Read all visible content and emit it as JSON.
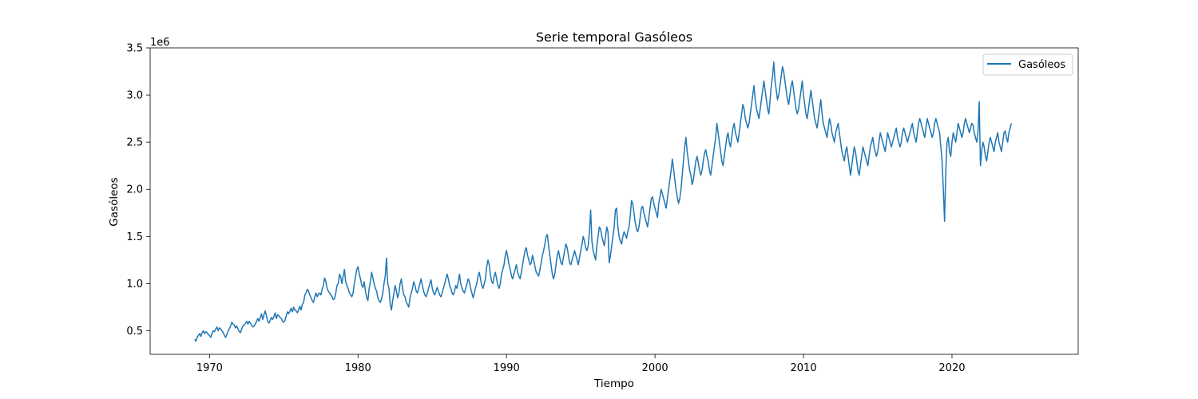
{
  "chart_data": {
    "type": "line",
    "title": "Serie temporal Gasóleos",
    "xlabel": "Tiempo",
    "ylabel": "Gasóleos",
    "y_offset_label": "1e6",
    "xlim": [
      1966.0,
      2028.5
    ],
    "ylim": [
      0.25,
      3.5
    ],
    "x_ticks": [
      1970,
      1980,
      1990,
      2000,
      2010,
      2020
    ],
    "x_tick_labels": [
      "1970",
      "1980",
      "1990",
      "2000",
      "2010",
      "2020"
    ],
    "y_ticks": [
      0.5,
      1.0,
      1.5,
      2.0,
      2.5,
      3.0,
      3.5
    ],
    "y_tick_labels": [
      "0.5",
      "1.0",
      "1.5",
      "2.0",
      "2.5",
      "3.0",
      "3.5"
    ],
    "legend_position": "top-right",
    "grid": false,
    "series": [
      {
        "name": "Gasóleos",
        "color": "#1f77b4",
        "x_start": 1969.0,
        "x_step": 0.08333333,
        "values": [
          0.41,
          0.39,
          0.43,
          0.45,
          0.47,
          0.44,
          0.48,
          0.5,
          0.47,
          0.49,
          0.48,
          0.46,
          0.45,
          0.43,
          0.47,
          0.5,
          0.49,
          0.52,
          0.54,
          0.5,
          0.53,
          0.52,
          0.5,
          0.48,
          0.45,
          0.43,
          0.46,
          0.5,
          0.52,
          0.55,
          0.59,
          0.57,
          0.56,
          0.53,
          0.55,
          0.52,
          0.49,
          0.48,
          0.52,
          0.55,
          0.56,
          0.58,
          0.6,
          0.57,
          0.6,
          0.58,
          0.56,
          0.54,
          0.55,
          0.57,
          0.6,
          0.63,
          0.6,
          0.64,
          0.68,
          0.62,
          0.67,
          0.71,
          0.66,
          0.6,
          0.58,
          0.61,
          0.64,
          0.62,
          0.65,
          0.69,
          0.63,
          0.67,
          0.66,
          0.64,
          0.63,
          0.6,
          0.59,
          0.61,
          0.66,
          0.7,
          0.68,
          0.71,
          0.74,
          0.7,
          0.75,
          0.72,
          0.71,
          0.69,
          0.72,
          0.76,
          0.72,
          0.78,
          0.8,
          0.88,
          0.9,
          0.94,
          0.92,
          0.88,
          0.85,
          0.82,
          0.8,
          0.86,
          0.9,
          0.86,
          0.89,
          0.9,
          0.88,
          0.94,
          0.98,
          1.06,
          1.02,
          0.95,
          0.92,
          0.9,
          0.88,
          0.86,
          0.83,
          0.84,
          0.9,
          0.98,
          1.0,
          1.1,
          1.07,
          1.0,
          1.08,
          1.15,
          1.02,
          0.98,
          0.95,
          0.9,
          0.88,
          0.86,
          0.9,
          1.0,
          1.08,
          1.15,
          1.18,
          1.1,
          1.05,
          0.98,
          0.96,
          1.02,
          0.92,
          0.85,
          0.82,
          0.95,
          1.02,
          1.12,
          1.06,
          1.0,
          0.95,
          0.92,
          0.85,
          0.82,
          0.8,
          0.84,
          0.9,
          1.0,
          1.08,
          1.27,
          1.0,
          0.95,
          0.78,
          0.72,
          0.82,
          0.9,
          0.98,
          0.92,
          0.85,
          0.9,
          1.0,
          1.05,
          0.95,
          0.88,
          0.86,
          0.8,
          0.78,
          0.75,
          0.85,
          0.9,
          0.95,
          1.02,
          0.98,
          0.92,
          0.9,
          0.95,
          1.0,
          1.05,
          0.98,
          0.92,
          0.88,
          0.86,
          0.9,
          0.95,
          1.0,
          1.04,
          0.95,
          0.9,
          0.88,
          0.92,
          0.96,
          0.92,
          0.88,
          0.86,
          0.9,
          0.95,
          1.0,
          1.05,
          1.1,
          1.05,
          0.98,
          0.95,
          0.9,
          0.88,
          0.92,
          0.98,
          0.95,
          1.02,
          1.1,
          1.0,
          0.95,
          0.92,
          0.9,
          0.95,
          1.0,
          1.05,
          1.02,
          0.95,
          0.9,
          0.85,
          0.9,
          0.96,
          1.0,
          1.08,
          1.12,
          1.05,
          0.98,
          0.95,
          1.0,
          1.05,
          1.18,
          1.25,
          1.2,
          1.1,
          1.02,
          1.0,
          1.08,
          1.12,
          1.05,
          0.98,
          0.95,
          1.0,
          1.1,
          1.15,
          1.2,
          1.3,
          1.35,
          1.28,
          1.2,
          1.15,
          1.08,
          1.05,
          1.1,
          1.15,
          1.2,
          1.12,
          1.08,
          1.05,
          1.12,
          1.2,
          1.28,
          1.35,
          1.38,
          1.3,
          1.25,
          1.2,
          1.22,
          1.3,
          1.25,
          1.18,
          1.12,
          1.1,
          1.08,
          1.15,
          1.22,
          1.3,
          1.35,
          1.42,
          1.5,
          1.52,
          1.4,
          1.3,
          1.2,
          1.1,
          1.05,
          1.1,
          1.2,
          1.3,
          1.35,
          1.28,
          1.22,
          1.2,
          1.28,
          1.35,
          1.42,
          1.38,
          1.3,
          1.22,
          1.2,
          1.25,
          1.3,
          1.35,
          1.3,
          1.25,
          1.2,
          1.28,
          1.35,
          1.42,
          1.5,
          1.45,
          1.38,
          1.35,
          1.4,
          1.55,
          1.78,
          1.45,
          1.35,
          1.3,
          1.25,
          1.4,
          1.5,
          1.6,
          1.58,
          1.5,
          1.45,
          1.4,
          1.5,
          1.6,
          1.55,
          1.22,
          1.3,
          1.4,
          1.5,
          1.6,
          1.78,
          1.8,
          1.6,
          1.5,
          1.45,
          1.42,
          1.5,
          1.55,
          1.52,
          1.48,
          1.55,
          1.6,
          1.72,
          1.88,
          1.85,
          1.75,
          1.65,
          1.58,
          1.55,
          1.6,
          1.7,
          1.8,
          1.82,
          1.75,
          1.7,
          1.65,
          1.6,
          1.7,
          1.8,
          1.9,
          1.92,
          1.85,
          1.8,
          1.75,
          1.7,
          1.85,
          1.92,
          2.0,
          1.95,
          1.9,
          1.85,
          1.8,
          1.9,
          2.0,
          2.1,
          2.2,
          2.32,
          2.22,
          2.1,
          2.0,
          1.92,
          1.85,
          1.9,
          2.0,
          2.15,
          2.3,
          2.45,
          2.55,
          2.4,
          2.3,
          2.2,
          2.15,
          2.05,
          2.1,
          2.2,
          2.3,
          2.35,
          2.28,
          2.2,
          2.15,
          2.2,
          2.3,
          2.38,
          2.42,
          2.35,
          2.3,
          2.2,
          2.15,
          2.25,
          2.35,
          2.45,
          2.55,
          2.7,
          2.6,
          2.5,
          2.4,
          2.3,
          2.25,
          2.35,
          2.45,
          2.55,
          2.6,
          2.5,
          2.45,
          2.55,
          2.65,
          2.7,
          2.6,
          2.55,
          2.5,
          2.6,
          2.7,
          2.8,
          2.9,
          2.85,
          2.75,
          2.7,
          2.65,
          2.7,
          2.8,
          2.9,
          3.0,
          3.1,
          2.95,
          2.85,
          2.8,
          2.75,
          2.85,
          2.95,
          3.05,
          3.15,
          3.05,
          2.95,
          2.85,
          2.8,
          2.95,
          3.1,
          3.2,
          3.35,
          3.15,
          3.05,
          2.95,
          3.0,
          3.1,
          3.2,
          3.3,
          3.25,
          3.15,
          3.05,
          2.95,
          2.9,
          3.0,
          3.1,
          3.15,
          3.05,
          2.95,
          2.85,
          2.8,
          2.85,
          2.95,
          3.05,
          3.15,
          3.0,
          2.9,
          2.8,
          2.75,
          2.85,
          2.95,
          3.05,
          2.95,
          2.85,
          2.75,
          2.7,
          2.65,
          2.75,
          2.85,
          2.95,
          2.8,
          2.7,
          2.65,
          2.6,
          2.55,
          2.65,
          2.75,
          2.7,
          2.6,
          2.55,
          2.5,
          2.6,
          2.65,
          2.7,
          2.6,
          2.5,
          2.4,
          2.35,
          2.3,
          2.4,
          2.45,
          2.35,
          2.25,
          2.15,
          2.25,
          2.35,
          2.45,
          2.4,
          2.3,
          2.2,
          2.15,
          2.25,
          2.35,
          2.45,
          2.4,
          2.35,
          2.3,
          2.25,
          2.35,
          2.45,
          2.5,
          2.55,
          2.45,
          2.4,
          2.35,
          2.4,
          2.5,
          2.6,
          2.55,
          2.5,
          2.45,
          2.4,
          2.5,
          2.6,
          2.55,
          2.5,
          2.45,
          2.5,
          2.55,
          2.6,
          2.65,
          2.55,
          2.5,
          2.45,
          2.5,
          2.6,
          2.65,
          2.6,
          2.55,
          2.5,
          2.55,
          2.6,
          2.65,
          2.7,
          2.6,
          2.55,
          2.5,
          2.6,
          2.7,
          2.75,
          2.7,
          2.65,
          2.6,
          2.55,
          2.65,
          2.75,
          2.7,
          2.65,
          2.6,
          2.55,
          2.6,
          2.7,
          2.75,
          2.7,
          2.65,
          2.6,
          2.45,
          2.3,
          2.0,
          1.66,
          2.2,
          2.5,
          2.55,
          2.4,
          2.35,
          2.5,
          2.6,
          2.55,
          2.5,
          2.6,
          2.7,
          2.65,
          2.6,
          2.55,
          2.6,
          2.7,
          2.75,
          2.7,
          2.65,
          2.6,
          2.65,
          2.7,
          2.68,
          2.6,
          2.55,
          2.5,
          2.6,
          2.93,
          2.25,
          2.4,
          2.5,
          2.45,
          2.35,
          2.3,
          2.4,
          2.5,
          2.55,
          2.5,
          2.45,
          2.4,
          2.5,
          2.55,
          2.6,
          2.5,
          2.45,
          2.4,
          2.5,
          2.6,
          2.62,
          2.55,
          2.5,
          2.6,
          2.65,
          2.7
        ]
      }
    ]
  }
}
